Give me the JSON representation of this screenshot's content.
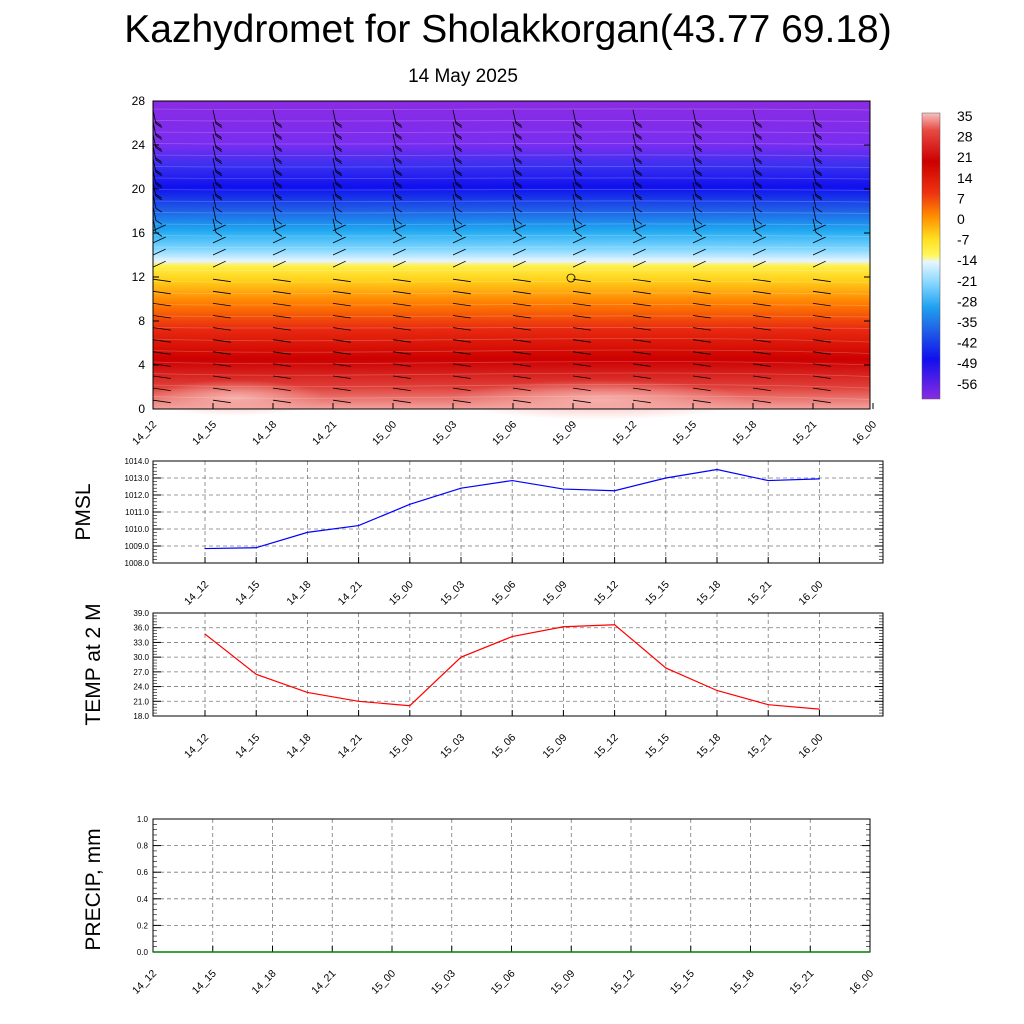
{
  "title": "Kazhydromet for Sholakkorgan(43.77 69.18)",
  "subtitle": "14 May 2025",
  "time_labels": [
    "14_12",
    "14_15",
    "14_18",
    "14_21",
    "15_00",
    "15_03",
    "15_06",
    "15_09",
    "15_12",
    "15_15",
    "15_18",
    "15_21",
    "16_00"
  ],
  "colors": {
    "pmsl_line": "#0000ff",
    "temp_line": "#ff0000",
    "precip_line": "#008000",
    "grid": "#7a7a7a"
  },
  "chart_data": [
    {
      "type": "heatmap",
      "name": "temperature-height-section",
      "y_ticks": [
        0,
        4,
        8,
        12,
        16,
        20,
        24,
        28
      ],
      "ylim": [
        0,
        28
      ],
      "x_categories": [
        "14_12",
        "14_15",
        "14_18",
        "14_21",
        "15_00",
        "15_03",
        "15_06",
        "15_09",
        "15_12",
        "15_15",
        "15_18",
        "15_21",
        "16_00"
      ],
      "colorbar_labels": [
        "35",
        "28",
        "21",
        "14",
        "7",
        "0",
        "-7",
        "-14",
        "-21",
        "-28",
        "-35",
        "-42",
        "-49",
        "-56"
      ],
      "colorbar_range": [
        -60,
        38
      ],
      "wind_barbs": true
    },
    {
      "type": "line",
      "ylabel": "PMSL",
      "ylim": [
        1008.0,
        1014.0
      ],
      "y_ticks": [
        "1008.0",
        "1009.0",
        "1010.0",
        "1011.0",
        "1012.0",
        "1013.0",
        "1014.0"
      ],
      "grid": true,
      "x": [
        "14_12",
        "14_15",
        "14_18",
        "14_21",
        "15_00",
        "15_03",
        "15_06",
        "15_09",
        "15_12",
        "15_15",
        "15_18",
        "15_21",
        "16_00"
      ],
      "values": [
        1008.85,
        1008.9,
        1009.8,
        1010.2,
        1011.45,
        1012.4,
        1012.85,
        1012.35,
        1012.25,
        1013.0,
        1013.5,
        1012.85,
        1012.95
      ]
    },
    {
      "type": "line",
      "ylabel": "TEMP at 2 M",
      "ylim": [
        18.0,
        39.0
      ],
      "y_ticks": [
        "18.0",
        "21.0",
        "24.0",
        "27.0",
        "30.0",
        "33.0",
        "36.0",
        "39.0"
      ],
      "grid": true,
      "x": [
        "14_12",
        "14_15",
        "14_18",
        "14_21",
        "15_00",
        "15_03",
        "15_06",
        "15_09",
        "15_12",
        "15_15",
        "15_18",
        "15_21",
        "16_00"
      ],
      "values": [
        34.7,
        26.5,
        22.8,
        21.0,
        20.1,
        30.0,
        34.2,
        36.2,
        36.6,
        27.8,
        23.2,
        20.3,
        19.4
      ]
    },
    {
      "type": "line",
      "ylabel": "PRECIP, mm",
      "ylim": [
        0.0,
        1.0
      ],
      "y_ticks": [
        "0.0",
        "0.2",
        "0.4",
        "0.6",
        "0.8",
        "1.0"
      ],
      "grid": true,
      "x": [
        "14_12",
        "14_15",
        "14_18",
        "14_21",
        "15_00",
        "15_03",
        "15_06",
        "15_09",
        "15_12",
        "15_15",
        "15_18",
        "15_21",
        "16_00"
      ],
      "values": [
        0,
        0,
        0,
        0,
        0,
        0,
        0,
        0,
        0,
        0,
        0,
        0,
        0
      ]
    }
  ]
}
